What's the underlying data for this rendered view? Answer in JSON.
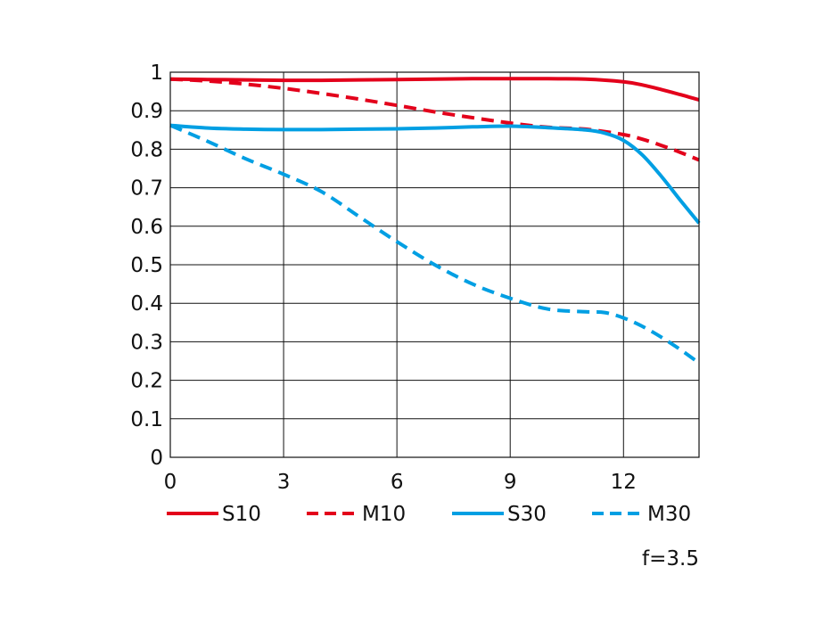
{
  "chart_data": {
    "type": "line",
    "xlim": [
      0,
      14
    ],
    "ylim": [
      0,
      1
    ],
    "x_ticks": [
      "0",
      "3",
      "6",
      "9",
      "12"
    ],
    "y_ticks": [
      "0",
      "0.1",
      "0.2",
      "0.3",
      "0.4",
      "0.5",
      "0.6",
      "0.7",
      "0.8",
      "0.9",
      "1"
    ],
    "grid": true,
    "legend_position": "bottom",
    "note": "f=3.5",
    "series": [
      {
        "name": "S10",
        "color": "#e3001b",
        "dash": "solid",
        "x": [
          0,
          1,
          2,
          3,
          4,
          5,
          6,
          7,
          8,
          9,
          10,
          11,
          12,
          12.5,
          13,
          13.5,
          14
        ],
        "y": [
          0.982,
          0.981,
          0.98,
          0.979,
          0.979,
          0.98,
          0.981,
          0.982,
          0.983,
          0.983,
          0.983,
          0.982,
          0.975,
          0.967,
          0.955,
          0.942,
          0.928
        ]
      },
      {
        "name": "M10",
        "color": "#e3001b",
        "dash": "dashed",
        "x": [
          0,
          1,
          2,
          3,
          4,
          5,
          6,
          7,
          8,
          9,
          10,
          11,
          12,
          12.5,
          13,
          13.5,
          14
        ],
        "y": [
          0.982,
          0.977,
          0.969,
          0.958,
          0.945,
          0.93,
          0.914,
          0.897,
          0.882,
          0.868,
          0.857,
          0.852,
          0.838,
          0.826,
          0.81,
          0.792,
          0.772
        ]
      },
      {
        "name": "S30",
        "color": "#009fe3",
        "dash": "solid",
        "x": [
          0,
          1,
          2,
          3,
          4,
          5,
          6,
          7,
          8,
          9,
          10,
          11,
          11.5,
          12,
          12.5,
          13,
          13.5,
          14
        ],
        "y": [
          0.862,
          0.855,
          0.852,
          0.851,
          0.851,
          0.852,
          0.853,
          0.855,
          0.858,
          0.86,
          0.856,
          0.85,
          0.842,
          0.823,
          0.785,
          0.73,
          0.668,
          0.608
        ]
      },
      {
        "name": "M30",
        "color": "#009fe3",
        "dash": "dashed",
        "x": [
          0,
          1,
          2,
          3,
          4,
          5,
          6,
          7,
          8,
          9,
          10,
          11,
          11.5,
          12,
          12.5,
          13,
          13.5,
          14
        ],
        "y": [
          0.862,
          0.82,
          0.775,
          0.735,
          0.69,
          0.625,
          0.56,
          0.5,
          0.45,
          0.413,
          0.385,
          0.378,
          0.376,
          0.362,
          0.34,
          0.312,
          0.28,
          0.245
        ]
      }
    ]
  }
}
